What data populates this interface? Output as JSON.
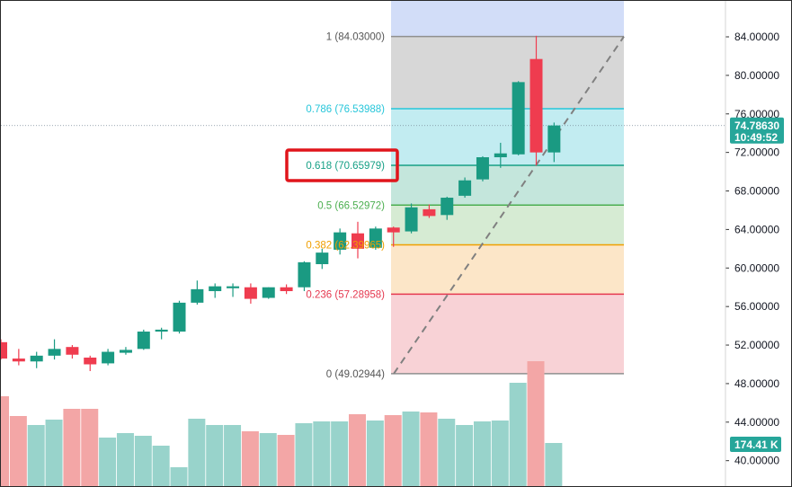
{
  "chart_data": {
    "type": "candlestick",
    "ylim": [
      38.2,
      88.0
    ],
    "y_ticks": [
      "40.00000",
      "44.00000",
      "48.00000",
      "52.00000",
      "56.00000",
      "60.00000",
      "64.00000",
      "68.00000",
      "72.00000",
      "76.00000",
      "80.00000",
      "84.00000"
    ],
    "y_tick_values": [
      40,
      44,
      48,
      52,
      56,
      60,
      64,
      68,
      72,
      76,
      80,
      84
    ],
    "candles": [
      {
        "o": 52.3,
        "h": 52.6,
        "l": 50.5,
        "c": 50.6
      },
      {
        "o": 50.6,
        "h": 51.6,
        "l": 49.9,
        "c": 50.3
      },
      {
        "o": 50.3,
        "h": 51.3,
        "l": 49.6,
        "c": 50.9
      },
      {
        "o": 50.9,
        "h": 52.6,
        "l": 50.5,
        "c": 51.6
      },
      {
        "o": 51.8,
        "h": 52.0,
        "l": 50.6,
        "c": 51.0
      },
      {
        "o": 50.7,
        "h": 50.9,
        "l": 49.3,
        "c": 50.0
      },
      {
        "o": 50.1,
        "h": 51.6,
        "l": 49.9,
        "c": 51.3
      },
      {
        "o": 51.2,
        "h": 51.8,
        "l": 51.0,
        "c": 51.5
      },
      {
        "o": 51.6,
        "h": 53.6,
        "l": 51.5,
        "c": 53.4
      },
      {
        "o": 53.4,
        "h": 53.8,
        "l": 52.6,
        "c": 53.6
      },
      {
        "o": 53.4,
        "h": 56.6,
        "l": 53.2,
        "c": 56.4
      },
      {
        "o": 56.4,
        "h": 58.7,
        "l": 56.2,
        "c": 57.8
      },
      {
        "o": 57.6,
        "h": 58.4,
        "l": 56.9,
        "c": 58.1
      },
      {
        "o": 57.9,
        "h": 58.4,
        "l": 57.0,
        "c": 58.1
      },
      {
        "o": 58.0,
        "h": 58.4,
        "l": 56.3,
        "c": 56.8
      },
      {
        "o": 56.9,
        "h": 58.0,
        "l": 56.8,
        "c": 58.0
      },
      {
        "o": 58.0,
        "h": 58.3,
        "l": 57.3,
        "c": 57.6
      },
      {
        "o": 58.0,
        "h": 60.7,
        "l": 57.6,
        "c": 60.6
      },
      {
        "o": 60.4,
        "h": 62.0,
        "l": 59.9,
        "c": 61.6
      },
      {
        "o": 61.9,
        "h": 64.1,
        "l": 61.4,
        "c": 63.7
      },
      {
        "o": 63.6,
        "h": 64.8,
        "l": 61.0,
        "c": 62.0
      },
      {
        "o": 62.1,
        "h": 64.3,
        "l": 61.9,
        "c": 64.1
      },
      {
        "o": 64.2,
        "h": 64.3,
        "l": 62.2,
        "c": 63.7
      },
      {
        "o": 63.8,
        "h": 66.7,
        "l": 63.6,
        "c": 66.3
      },
      {
        "o": 66.1,
        "h": 66.6,
        "l": 65.2,
        "c": 65.4
      },
      {
        "o": 65.5,
        "h": 67.4,
        "l": 65.0,
        "c": 67.3
      },
      {
        "o": 67.5,
        "h": 69.4,
        "l": 67.3,
        "c": 69.1
      },
      {
        "o": 69.2,
        "h": 71.6,
        "l": 69.0,
        "c": 71.5
      },
      {
        "o": 71.5,
        "h": 73.0,
        "l": 70.4,
        "c": 71.9
      },
      {
        "o": 71.8,
        "h": 79.4,
        "l": 71.7,
        "c": 79.3
      },
      {
        "o": 81.7,
        "h": 84.1,
        "l": 70.7,
        "c": 72.0
      },
      {
        "o": 72.0,
        "h": 75.1,
        "l": 71.0,
        "c": 74.8
      }
    ],
    "volume": [
      100,
      78,
      68,
      74,
      86,
      86,
      54,
      59,
      56,
      45,
      21,
      75,
      68,
      68,
      61,
      59,
      57,
      70,
      72,
      72,
      80,
      73,
      79,
      83,
      82,
      75,
      68,
      72,
      73,
      115,
      139,
      48
    ],
    "fib_levels": [
      {
        "label": "1 (84.03000)",
        "ratio": "1",
        "value": 84.03,
        "line": "#8f8f8f",
        "fill": "#d7d7d7"
      },
      {
        "label": "0.786 (76.53988)",
        "ratio": "0.786",
        "value": 76.53988,
        "line": "#26c6da",
        "fill": "#c2ecf1"
      },
      {
        "label": "0.618 (70.65979)",
        "ratio": "0.618",
        "value": 70.65979,
        "line": "#16a085",
        "fill": "#c4e6dc"
      },
      {
        "label": "0.5 (66.52972)",
        "ratio": "0.5",
        "value": 66.52972,
        "line": "#4caf50",
        "fill": "#d6ebd3"
      },
      {
        "label": "0.382 (62.39965)",
        "ratio": "0.382",
        "value": 62.39965,
        "line": "#f0a000",
        "fill": "#fce6c8"
      },
      {
        "label": "0.236 (57.28958)",
        "ratio": "0.236",
        "value": 57.28958,
        "line": "#e53950",
        "fill": "#f8d2d6"
      },
      {
        "label": "0 (49.02944)",
        "ratio": "0",
        "value": 49.02944,
        "line": "#8f8f8f",
        "fill": ""
      }
    ],
    "fib_top_fill": "#d2ddf8",
    "current_price": {
      "label": "74.78630",
      "countdown": "10:49:52",
      "color": "#26a69a"
    },
    "volume_label": {
      "text": "174.41 K",
      "color": "#26a69a"
    },
    "up_color": "#1a9a82",
    "down_color": "#ef3c4f",
    "vol_up_color": "#98d3cb",
    "vol_down_color": "#f3a6a6",
    "highlight_color": "#e0151b"
  }
}
